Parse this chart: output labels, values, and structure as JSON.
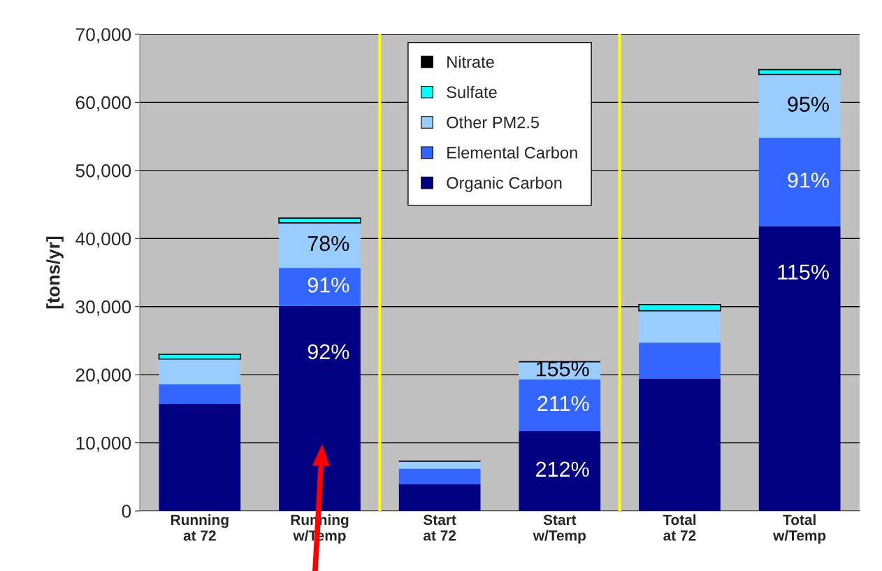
{
  "chart_data": {
    "type": "bar",
    "stacked": true,
    "ylabel": "[tons/yr]",
    "categories": [
      "Running\nat 72",
      "Running\nw/Temp",
      "Start\nat 72",
      "Start\nw/Temp",
      "Total\nat 72",
      "Total\nw/Temp"
    ],
    "series": [
      {
        "name": "Organic Carbon",
        "color": "#000080",
        "values": [
          15700,
          30100,
          3900,
          11700,
          19400,
          41800
        ]
      },
      {
        "name": "Elemental Carbon",
        "color": "#3366ff",
        "values": [
          2900,
          5600,
          2300,
          7600,
          5300,
          13000
        ]
      },
      {
        "name": "Other PM2.5",
        "color": "#99ccff",
        "values": [
          3700,
          6600,
          1100,
          2600,
          4700,
          9300
        ]
      },
      {
        "name": "Sulfate",
        "color": "#00ffff",
        "values": [
          700,
          700,
          0,
          0,
          900,
          700
        ]
      },
      {
        "name": "Nitrate",
        "color": "#000000",
        "values": [
          0,
          0,
          0,
          0,
          0,
          0
        ]
      }
    ],
    "ylim": [
      0,
      70000
    ],
    "yticks": [
      0,
      {
        "value": 10000,
        "label": "10,000"
      },
      {
        "value": 20000,
        "label": "20,000"
      },
      {
        "value": 30000,
        "label": "30,000"
      },
      {
        "value": 40000,
        "label": "40,000"
      },
      {
        "value": 50000,
        "label": "50,000"
      },
      {
        "value": 60000,
        "label": "60,000"
      },
      {
        "value": 70000,
        "label": "70,000"
      }
    ],
    "grid": "y",
    "legend": "top",
    "annotations": [
      {
        "text": "92%",
        "x": "Running\nw/Temp",
        "y": 30100
      },
      {
        "text": "91%",
        "x": "Running\nw/Temp",
        "y": 35700
      },
      {
        "text": "78%",
        "x": "Running\nw/Temp",
        "y": 42300
      },
      {
        "text": "212%",
        "x": "Start\nw/Temp",
        "y": 11700
      },
      {
        "text": "211%",
        "x": "Start\nw/Temp",
        "y": 19300
      },
      {
        "text": "155%",
        "x": "Start\nw/Temp",
        "y": 21900
      },
      {
        "text": "115%",
        "x": "Total\nw/Temp",
        "y": 41800
      },
      {
        "text": "91%",
        "x": "Total\nw/Temp",
        "y": 54800
      },
      {
        "text": "95%",
        "x": "Total\nw/Temp",
        "y": 64100
      }
    ]
  }
}
